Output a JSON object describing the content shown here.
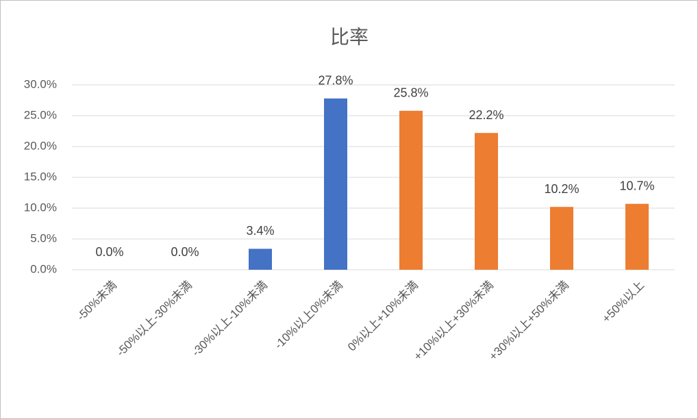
{
  "chart_data": {
    "type": "bar",
    "title": "比率",
    "categories": [
      "-50%未満",
      "-50%以上-30%未満",
      "-30%以上-10%未満",
      "-10%以上0%未満",
      "0%以上+10%未満",
      "+10%以上+30%未満",
      "+30%以上+50%未満",
      "+50%以上"
    ],
    "values": [
      0,
      0,
      3.4,
      27.8,
      25.8,
      22.2,
      10.2,
      10.7
    ],
    "value_labels": [
      "0.0%",
      "0.0%",
      "3.4%",
      "27.8%",
      "25.8%",
      "22.2%",
      "10.2%",
      "10.7%"
    ],
    "colors": [
      "#4472c4",
      "#4472c4",
      "#4472c4",
      "#4472c4",
      "#ed7d31",
      "#ed7d31",
      "#ed7d31",
      "#ed7d31"
    ],
    "ylim": [
      0,
      30
    ],
    "yticks": [
      {
        "value": 0,
        "label": "0.0%"
      },
      {
        "value": 5,
        "label": "5.0%"
      },
      {
        "value": 10,
        "label": "10.0%"
      },
      {
        "value": 15,
        "label": "15.0%"
      },
      {
        "value": 20,
        "label": "20.0%"
      },
      {
        "value": 25,
        "label": "25.0%"
      },
      {
        "value": 30,
        "label": "30.0%"
      }
    ],
    "grid": true
  }
}
